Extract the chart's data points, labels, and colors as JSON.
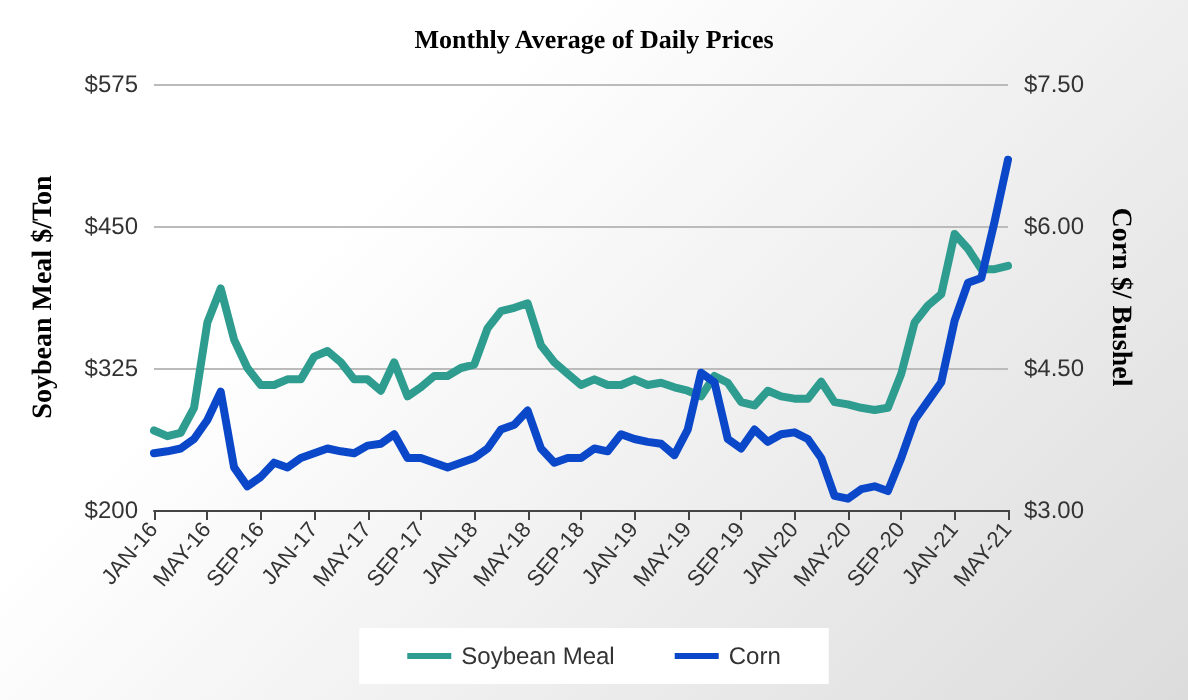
{
  "chart_data": {
    "type": "line",
    "title": "Monthly Average of Daily Prices",
    "ylabel": "Soybean Meal $/Ton",
    "y2label": "Corn $/ Bushel",
    "categories": [
      "JAN-16",
      null,
      null,
      null,
      "MAY-16",
      null,
      null,
      null,
      "SEP-16",
      null,
      null,
      null,
      "JAN-17",
      null,
      null,
      null,
      "MAY-17",
      null,
      null,
      null,
      "SEP-17",
      null,
      null,
      null,
      "JAN-18",
      null,
      null,
      null,
      "MAY-18",
      null,
      null,
      null,
      "SEP-18",
      null,
      null,
      null,
      "JAN-19",
      null,
      null,
      null,
      "MAY-19",
      null,
      null,
      null,
      "SEP-19",
      null,
      null,
      null,
      "JAN-20",
      null,
      null,
      null,
      "MAY-20",
      null,
      null,
      null,
      "SEP-20",
      null,
      null,
      null,
      "JAN-21",
      null,
      null,
      null,
      "MAY-21"
    ],
    "series": [
      {
        "name": "Soybean Meal",
        "color": "#2e9c8f",
        "values": [
          270,
          265,
          268,
          290,
          365,
          395,
          350,
          325,
          310,
          310,
          315,
          315,
          335,
          340,
          330,
          315,
          315,
          305,
          330,
          300,
          308,
          318,
          318,
          325,
          328,
          360,
          375,
          378,
          382,
          345,
          330,
          320,
          310,
          315,
          310,
          310,
          315,
          310,
          312,
          308,
          305,
          300,
          318,
          312,
          295,
          292,
          305,
          300,
          298,
          298,
          313,
          295,
          293,
          290,
          288,
          290,
          320,
          365,
          380,
          390,
          443,
          430,
          412,
          412,
          415
        ]
      },
      {
        "name": "Corn",
        "color": "#0a47c9",
        "axis": "y2",
        "values": [
          3.6,
          3.62,
          3.65,
          3.75,
          3.95,
          4.25,
          3.45,
          3.25,
          3.35,
          3.5,
          3.45,
          3.55,
          3.6,
          3.65,
          3.62,
          3.6,
          3.68,
          3.7,
          3.8,
          3.55,
          3.55,
          3.5,
          3.45,
          3.5,
          3.55,
          3.65,
          3.85,
          3.9,
          4.05,
          3.65,
          3.5,
          3.55,
          3.55,
          3.65,
          3.62,
          3.8,
          3.75,
          3.72,
          3.7,
          3.58,
          3.85,
          4.45,
          4.35,
          3.75,
          3.65,
          3.85,
          3.72,
          3.8,
          3.82,
          3.75,
          3.55,
          3.15,
          3.12,
          3.22,
          3.25,
          3.2,
          3.55,
          3.95,
          4.15,
          4.35,
          5.0,
          5.4,
          5.45,
          6.05,
          6.7
        ]
      }
    ],
    "ylim": [
      200,
      575
    ],
    "yticks": [
      {
        "value": 200,
        "label": "$200"
      },
      {
        "value": 325,
        "label": "$325"
      },
      {
        "value": 450,
        "label": "$450"
      },
      {
        "value": 575,
        "label": "$575"
      }
    ],
    "y2lim": [
      3,
      7.5
    ],
    "y2ticks": [
      {
        "value": 3,
        "label": "$3.00"
      },
      {
        "value": 4.5,
        "label": "$4.50"
      },
      {
        "value": 6,
        "label": "$6.00"
      },
      {
        "value": 7.5,
        "label": "$7.50"
      }
    ],
    "grid": "y",
    "legend": "bottom",
    "marker": "none",
    "line_style": "solid"
  }
}
